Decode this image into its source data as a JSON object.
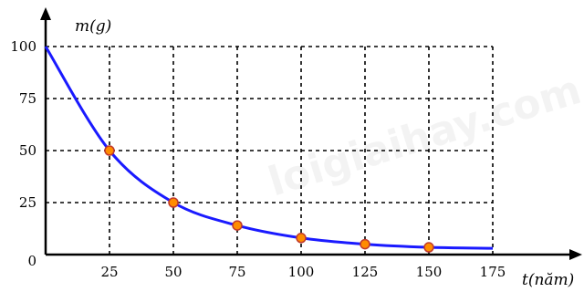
{
  "chart_data": {
    "type": "line",
    "xlabel": "t(năm)",
    "ylabel": "m(g)",
    "x_ticks": [
      25,
      50,
      75,
      100,
      125,
      150,
      175
    ],
    "x_tick_labels": [
      "25",
      "50",
      "75",
      "100",
      "125",
      "150",
      "175"
    ],
    "y_ticks": [
      0,
      25,
      50,
      75,
      100
    ],
    "y_tick_labels": [
      "0",
      "25",
      "50",
      "75",
      "100"
    ],
    "xlim": [
      0,
      175
    ],
    "ylim": [
      0,
      100
    ],
    "grid": "dashed",
    "series": [
      {
        "color": "#1a1aff",
        "x": [
          0,
          25,
          50,
          75,
          100,
          125,
          150,
          175
        ],
        "y": [
          100,
          50,
          25,
          14,
          8,
          5,
          3.5,
          3
        ]
      }
    ],
    "points": {
      "color": "#ff8c00",
      "x": [
        25,
        50,
        75,
        100,
        125,
        150
      ],
      "y": [
        50,
        25,
        14,
        8,
        5,
        3.5
      ]
    },
    "watermark": "loigiaihay.com"
  }
}
